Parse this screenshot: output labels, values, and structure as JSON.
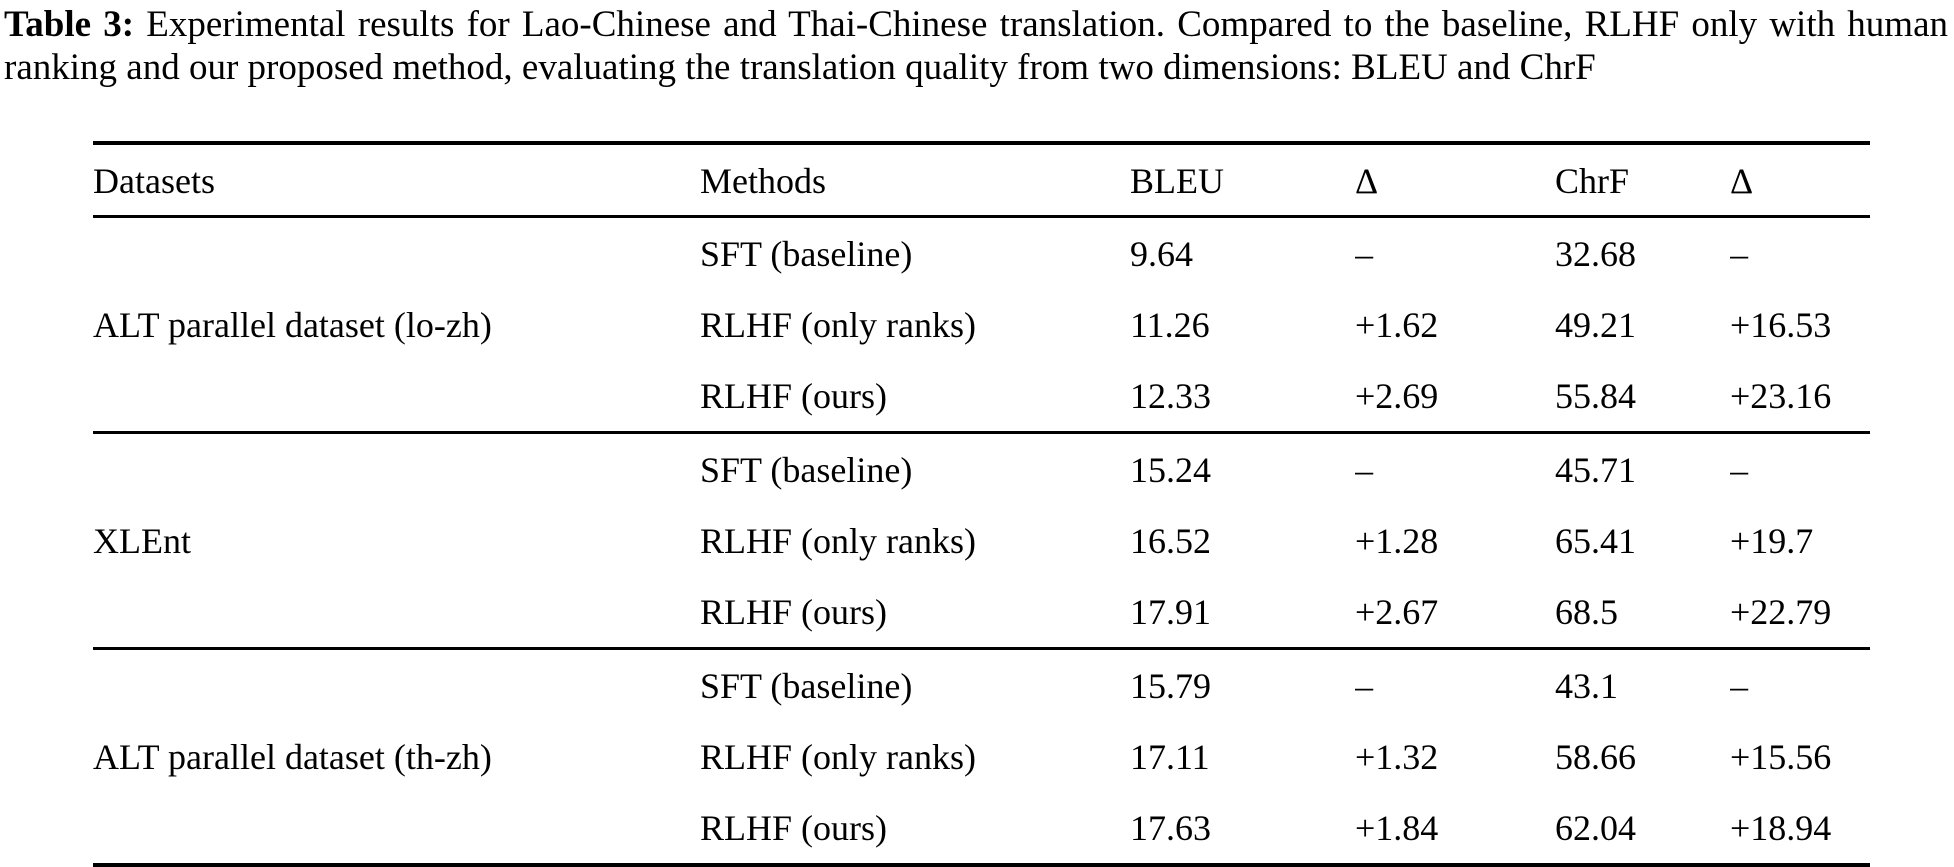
{
  "caption": {
    "label": "Table 3:",
    "text": "Experimental results for Lao-Chinese and Thai-Chinese translation. Compared to the baseline, RLHF only with human ranking and our proposed method, evaluating the translation quality from two dimensions: BLEU and ChrF"
  },
  "table": {
    "headers": [
      "Datasets",
      "Methods",
      "BLEU",
      "Δ",
      "ChrF",
      "Δ"
    ],
    "groups": [
      {
        "dataset": "ALT parallel dataset (lo-zh)",
        "rows": [
          {
            "method": "SFT (baseline)",
            "bleu": "9.64",
            "bleu_delta": "–",
            "chrf": "32.68",
            "chrf_delta": "–"
          },
          {
            "method": "RLHF (only ranks)",
            "bleu": "11.26",
            "bleu_delta": "+1.62",
            "chrf": "49.21",
            "chrf_delta": "+16.53"
          },
          {
            "method": "RLHF (ours)",
            "bleu": "12.33",
            "bleu_delta": "+2.69",
            "chrf": "55.84",
            "chrf_delta": "+23.16"
          }
        ]
      },
      {
        "dataset": "XLEnt",
        "rows": [
          {
            "method": "SFT (baseline)",
            "bleu": "15.24",
            "bleu_delta": "–",
            "chrf": "45.71",
            "chrf_delta": "–"
          },
          {
            "method": "RLHF (only ranks)",
            "bleu": "16.52",
            "bleu_delta": "+1.28",
            "chrf": "65.41",
            "chrf_delta": "+19.7"
          },
          {
            "method": "RLHF (ours)",
            "bleu": "17.91",
            "bleu_delta": "+2.67",
            "chrf": "68.5",
            "chrf_delta": "+22.79"
          }
        ]
      },
      {
        "dataset": "ALT parallel dataset (th-zh)",
        "rows": [
          {
            "method": "SFT (baseline)",
            "bleu": "15.79",
            "bleu_delta": "–",
            "chrf": "43.1",
            "chrf_delta": "–"
          },
          {
            "method": "RLHF (only ranks)",
            "bleu": "17.11",
            "bleu_delta": "+1.32",
            "chrf": "58.66",
            "chrf_delta": "+15.56"
          },
          {
            "method": "RLHF (ours)",
            "bleu": "17.63",
            "bleu_delta": "+1.84",
            "chrf": "62.04",
            "chrf_delta": "+18.94"
          }
        ]
      }
    ]
  }
}
